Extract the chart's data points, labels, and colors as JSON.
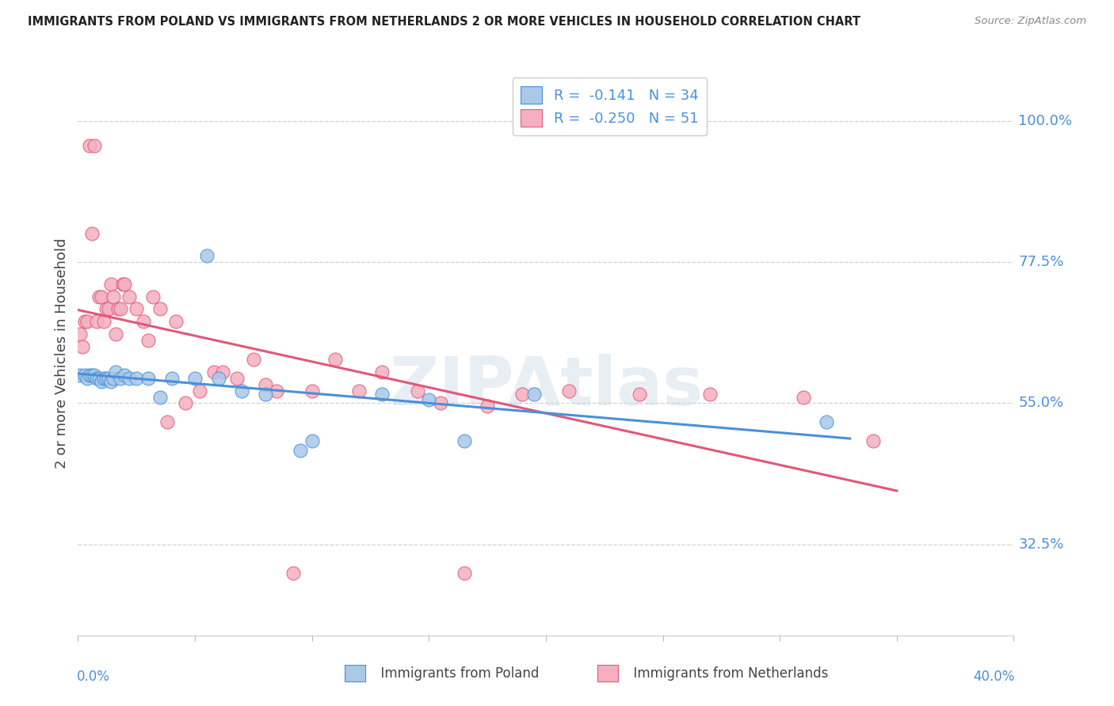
{
  "title": "IMMIGRANTS FROM POLAND VS IMMIGRANTS FROM NETHERLANDS 2 OR MORE VEHICLES IN HOUSEHOLD CORRELATION CHART",
  "source": "Source: ZipAtlas.com",
  "ylabel": "2 or more Vehicles in Household",
  "ytick_vals": [
    0.325,
    0.55,
    0.775,
    1.0
  ],
  "ytick_labels": [
    "32.5%",
    "55.0%",
    "77.5%",
    "100.0%"
  ],
  "xlim": [
    0.0,
    0.4
  ],
  "ylim": [
    0.18,
    1.08
  ],
  "poland_R": -0.141,
  "poland_N": 34,
  "netherlands_R": -0.25,
  "netherlands_N": 51,
  "poland_color": "#aac8e8",
  "netherlands_color": "#f4b0c0",
  "poland_line_color": "#4a90d9",
  "netherlands_line_color": "#e05878",
  "watermark": "ZIPAtlas",
  "poland_x": [
    0.001,
    0.003,
    0.004,
    0.005,
    0.006,
    0.007,
    0.008,
    0.009,
    0.01,
    0.011,
    0.012,
    0.013,
    0.014,
    0.015,
    0.016,
    0.018,
    0.02,
    0.022,
    0.025,
    0.03,
    0.035,
    0.04,
    0.05,
    0.055,
    0.06,
    0.07,
    0.08,
    0.095,
    0.1,
    0.13,
    0.15,
    0.165,
    0.195,
    0.32
  ],
  "poland_y": [
    0.595,
    0.595,
    0.59,
    0.595,
    0.595,
    0.595,
    0.59,
    0.59,
    0.585,
    0.59,
    0.59,
    0.59,
    0.585,
    0.59,
    0.6,
    0.59,
    0.595,
    0.59,
    0.59,
    0.59,
    0.56,
    0.59,
    0.59,
    0.785,
    0.59,
    0.57,
    0.565,
    0.475,
    0.49,
    0.565,
    0.555,
    0.49,
    0.565,
    0.52
  ],
  "netherlands_x": [
    0.001,
    0.002,
    0.003,
    0.004,
    0.005,
    0.006,
    0.007,
    0.008,
    0.009,
    0.01,
    0.011,
    0.012,
    0.013,
    0.014,
    0.015,
    0.016,
    0.017,
    0.018,
    0.019,
    0.02,
    0.022,
    0.025,
    0.028,
    0.03,
    0.032,
    0.035,
    0.038,
    0.042,
    0.046,
    0.052,
    0.058,
    0.062,
    0.068,
    0.075,
    0.08,
    0.085,
    0.092,
    0.1,
    0.11,
    0.12,
    0.13,
    0.145,
    0.155,
    0.165,
    0.175,
    0.19,
    0.21,
    0.24,
    0.27,
    0.31,
    0.34
  ],
  "netherlands_y": [
    0.66,
    0.64,
    0.68,
    0.68,
    0.96,
    0.82,
    0.96,
    0.68,
    0.72,
    0.72,
    0.68,
    0.7,
    0.7,
    0.74,
    0.72,
    0.66,
    0.7,
    0.7,
    0.74,
    0.74,
    0.72,
    0.7,
    0.68,
    0.65,
    0.72,
    0.7,
    0.52,
    0.68,
    0.55,
    0.57,
    0.6,
    0.6,
    0.59,
    0.62,
    0.58,
    0.57,
    0.28,
    0.57,
    0.62,
    0.57,
    0.6,
    0.57,
    0.55,
    0.28,
    0.545,
    0.565,
    0.57,
    0.565,
    0.565,
    0.56,
    0.49
  ]
}
